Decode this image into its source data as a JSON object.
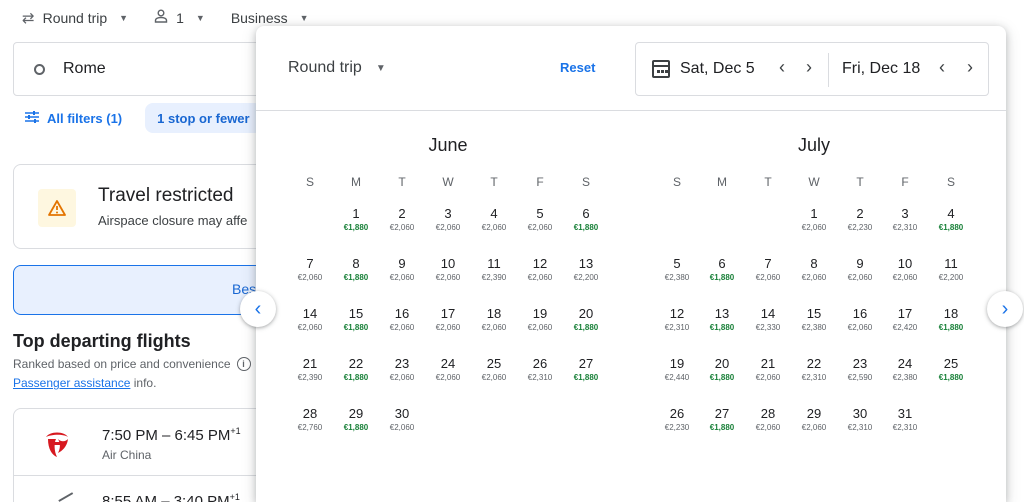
{
  "topbar": {
    "trip_type": "Round trip",
    "passengers": "1",
    "cabin": "Business"
  },
  "origin": {
    "value": "Rome"
  },
  "filters": {
    "all_filters": "All filters (1)",
    "stops_chip": "1 stop or fewer"
  },
  "alert": {
    "title": "Travel restricted",
    "subtitle": "Airspace closure may affe"
  },
  "best_tab": {
    "label": "Bes"
  },
  "results": {
    "heading": "Top departing flights",
    "ranked_text": "Ranked based on price and convenience",
    "info_icon": "i",
    "passenger_link": "Passenger assistance",
    "passenger_suffix": " info."
  },
  "flights": [
    {
      "times": "7:50 PM – 6:45 PM",
      "plus": "+1",
      "airline": "Air China"
    },
    {
      "times": "8:55 AM – 3:40 PM",
      "plus": "+1"
    }
  ],
  "picker": {
    "trip_type": "Round trip",
    "reset": "Reset",
    "depart": "Sat, Dec 5",
    "return": "Fri, Dec 18",
    "prev": "‹",
    "next": "›"
  },
  "weekdays": [
    "S",
    "M",
    "T",
    "W",
    "T",
    "F",
    "S"
  ],
  "months": [
    {
      "name": "June",
      "start_weekday": 1,
      "days": [
        {
          "d": 1,
          "p": "€1,880",
          "low": true
        },
        {
          "d": 2,
          "p": "€2,060",
          "low": false
        },
        {
          "d": 3,
          "p": "€2,060",
          "low": false
        },
        {
          "d": 4,
          "p": "€2,060",
          "low": false
        },
        {
          "d": 5,
          "p": "€2,060",
          "low": false
        },
        {
          "d": 6,
          "p": "€1,880",
          "low": true
        },
        {
          "d": 7,
          "p": "€2,060",
          "low": false
        },
        {
          "d": 8,
          "p": "€1,880",
          "low": true
        },
        {
          "d": 9,
          "p": "€2,060",
          "low": false
        },
        {
          "d": 10,
          "p": "€2,060",
          "low": false
        },
        {
          "d": 11,
          "p": "€2,390",
          "low": false
        },
        {
          "d": 12,
          "p": "€2,060",
          "low": false
        },
        {
          "d": 13,
          "p": "€2,200",
          "low": false
        },
        {
          "d": 14,
          "p": "€2,060",
          "low": false
        },
        {
          "d": 15,
          "p": "€1,880",
          "low": true
        },
        {
          "d": 16,
          "p": "€2,060",
          "low": false
        },
        {
          "d": 17,
          "p": "€2,060",
          "low": false
        },
        {
          "d": 18,
          "p": "€2,060",
          "low": false
        },
        {
          "d": 19,
          "p": "€2,060",
          "low": false
        },
        {
          "d": 20,
          "p": "€1,880",
          "low": true
        },
        {
          "d": 21,
          "p": "€2,390",
          "low": false
        },
        {
          "d": 22,
          "p": "€1,880",
          "low": true
        },
        {
          "d": 23,
          "p": "€2,060",
          "low": false
        },
        {
          "d": 24,
          "p": "€2,060",
          "low": false
        },
        {
          "d": 25,
          "p": "€2,060",
          "low": false
        },
        {
          "d": 26,
          "p": "€2,310",
          "low": false
        },
        {
          "d": 27,
          "p": "€1,880",
          "low": true
        },
        {
          "d": 28,
          "p": "€2,760",
          "low": false
        },
        {
          "d": 29,
          "p": "€1,880",
          "low": true
        },
        {
          "d": 30,
          "p": "€2,060",
          "low": false
        }
      ]
    },
    {
      "name": "July",
      "start_weekday": 3,
      "days": [
        {
          "d": 1,
          "p": "€2,060",
          "low": false
        },
        {
          "d": 2,
          "p": "€2,230",
          "low": false
        },
        {
          "d": 3,
          "p": "€2,310",
          "low": false
        },
        {
          "d": 4,
          "p": "€1,880",
          "low": true
        },
        {
          "d": 5,
          "p": "€2,380",
          "low": false
        },
        {
          "d": 6,
          "p": "€1,880",
          "low": true
        },
        {
          "d": 7,
          "p": "€2,060",
          "low": false
        },
        {
          "d": 8,
          "p": "€2,060",
          "low": false
        },
        {
          "d": 9,
          "p": "€2,060",
          "low": false
        },
        {
          "d": 10,
          "p": "€2,060",
          "low": false
        },
        {
          "d": 11,
          "p": "€2,200",
          "low": false
        },
        {
          "d": 12,
          "p": "€2,310",
          "low": false
        },
        {
          "d": 13,
          "p": "€1,880",
          "low": true
        },
        {
          "d": 14,
          "p": "€2,330",
          "low": false
        },
        {
          "d": 15,
          "p": "€2,380",
          "low": false
        },
        {
          "d": 16,
          "p": "€2,060",
          "low": false
        },
        {
          "d": 17,
          "p": "€2,420",
          "low": false
        },
        {
          "d": 18,
          "p": "€1,880",
          "low": true
        },
        {
          "d": 19,
          "p": "€2,440",
          "low": false
        },
        {
          "d": 20,
          "p": "€1,880",
          "low": true
        },
        {
          "d": 21,
          "p": "€2,060",
          "low": false
        },
        {
          "d": 22,
          "p": "€2,310",
          "low": false
        },
        {
          "d": 23,
          "p": "€2,590",
          "low": false
        },
        {
          "d": 24,
          "p": "€2,380",
          "low": false
        },
        {
          "d": 25,
          "p": "€1,880",
          "low": true
        },
        {
          "d": 26,
          "p": "€2,230",
          "low": false
        },
        {
          "d": 27,
          "p": "€1,880",
          "low": true
        },
        {
          "d": 28,
          "p": "€2,060",
          "low": false
        },
        {
          "d": 29,
          "p": "€2,060",
          "low": false
        },
        {
          "d": 30,
          "p": "€2,310",
          "low": false
        },
        {
          "d": 31,
          "p": "€2,310",
          "low": false
        }
      ]
    }
  ],
  "colors": {
    "accent": "#1a73e8",
    "low_price": "#188038",
    "chip_bg": "#e8f0fe",
    "warning": "#e37400"
  },
  "icons": {
    "trip": "swap-arrows-icon",
    "person": "person-icon",
    "origin": "circle-icon",
    "filters": "sliders-icon",
    "warning": "warning-triangle-icon",
    "calendar": "calendar-icon",
    "airline_logo": "air-china-logo"
  }
}
